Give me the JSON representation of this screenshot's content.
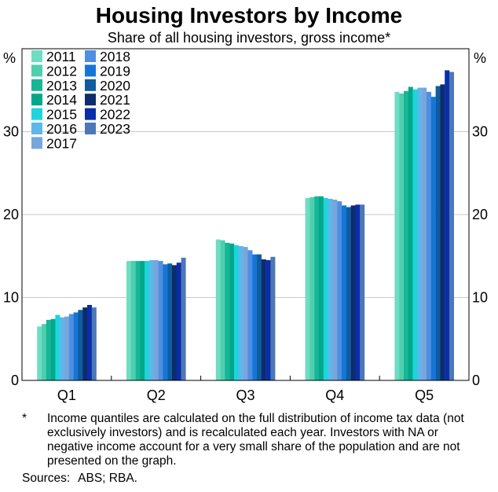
{
  "chart_data": {
    "type": "bar",
    "title": "Housing Investors by Income",
    "subtitle": "Share of all housing investors, gross income*",
    "unit_left": "%",
    "unit_right": "%",
    "categories": [
      "Q1",
      "Q2",
      "Q3",
      "Q4",
      "Q5"
    ],
    "ylim": [
      0,
      40
    ],
    "yticks": [
      0,
      10,
      20,
      30
    ],
    "grid": true,
    "legend": "top-left",
    "series": [
      {
        "name": "2011",
        "color": "#6fdcc4",
        "values": [
          6.5,
          14.4,
          17.0,
          22.0,
          34.8
        ]
      },
      {
        "name": "2012",
        "color": "#4ecfae",
        "values": [
          6.8,
          14.4,
          16.9,
          22.1,
          34.6
        ]
      },
      {
        "name": "2013",
        "color": "#18b596",
        "values": [
          7.3,
          14.4,
          16.6,
          22.2,
          34.9
        ]
      },
      {
        "name": "2014",
        "color": "#00a88a",
        "values": [
          7.4,
          14.4,
          16.5,
          22.2,
          35.4
        ]
      },
      {
        "name": "2015",
        "color": "#1fd4dc",
        "values": [
          7.9,
          14.4,
          16.3,
          22.0,
          35.1
        ]
      },
      {
        "name": "2016",
        "color": "#5fb6ea",
        "values": [
          7.6,
          14.5,
          16.2,
          21.9,
          35.3
        ]
      },
      {
        "name": "2017",
        "color": "#78a6da",
        "values": [
          7.7,
          14.5,
          16.1,
          21.8,
          35.3
        ]
      },
      {
        "name": "2018",
        "color": "#4f8ee0",
        "values": [
          8.0,
          14.4,
          15.7,
          21.6,
          34.8
        ]
      },
      {
        "name": "2019",
        "color": "#1576d8",
        "values": [
          8.2,
          14.0,
          15.2,
          21.1,
          34.2
        ]
      },
      {
        "name": "2020",
        "color": "#0f5d9e",
        "values": [
          8.5,
          14.1,
          15.2,
          20.9,
          35.5
        ]
      },
      {
        "name": "2021",
        "color": "#0d2c6b",
        "values": [
          8.8,
          13.9,
          14.6,
          21.1,
          35.7
        ]
      },
      {
        "name": "2022",
        "color": "#0a2ea8",
        "values": [
          9.1,
          14.2,
          14.5,
          21.2,
          37.4
        ]
      },
      {
        "name": "2023",
        "color": "#4d78b6",
        "values": [
          8.8,
          14.8,
          14.9,
          21.2,
          37.2
        ]
      }
    ]
  },
  "footnote": {
    "marker": "*",
    "text": "Income quantiles are calculated on the full distribution of income tax data (not exclusively investors) and is recalculated each year. Investors with NA or negative income account for a very small share of the population and are not presented on the graph."
  },
  "sources": {
    "label": "Sources:",
    "text": "ABS; RBA."
  }
}
